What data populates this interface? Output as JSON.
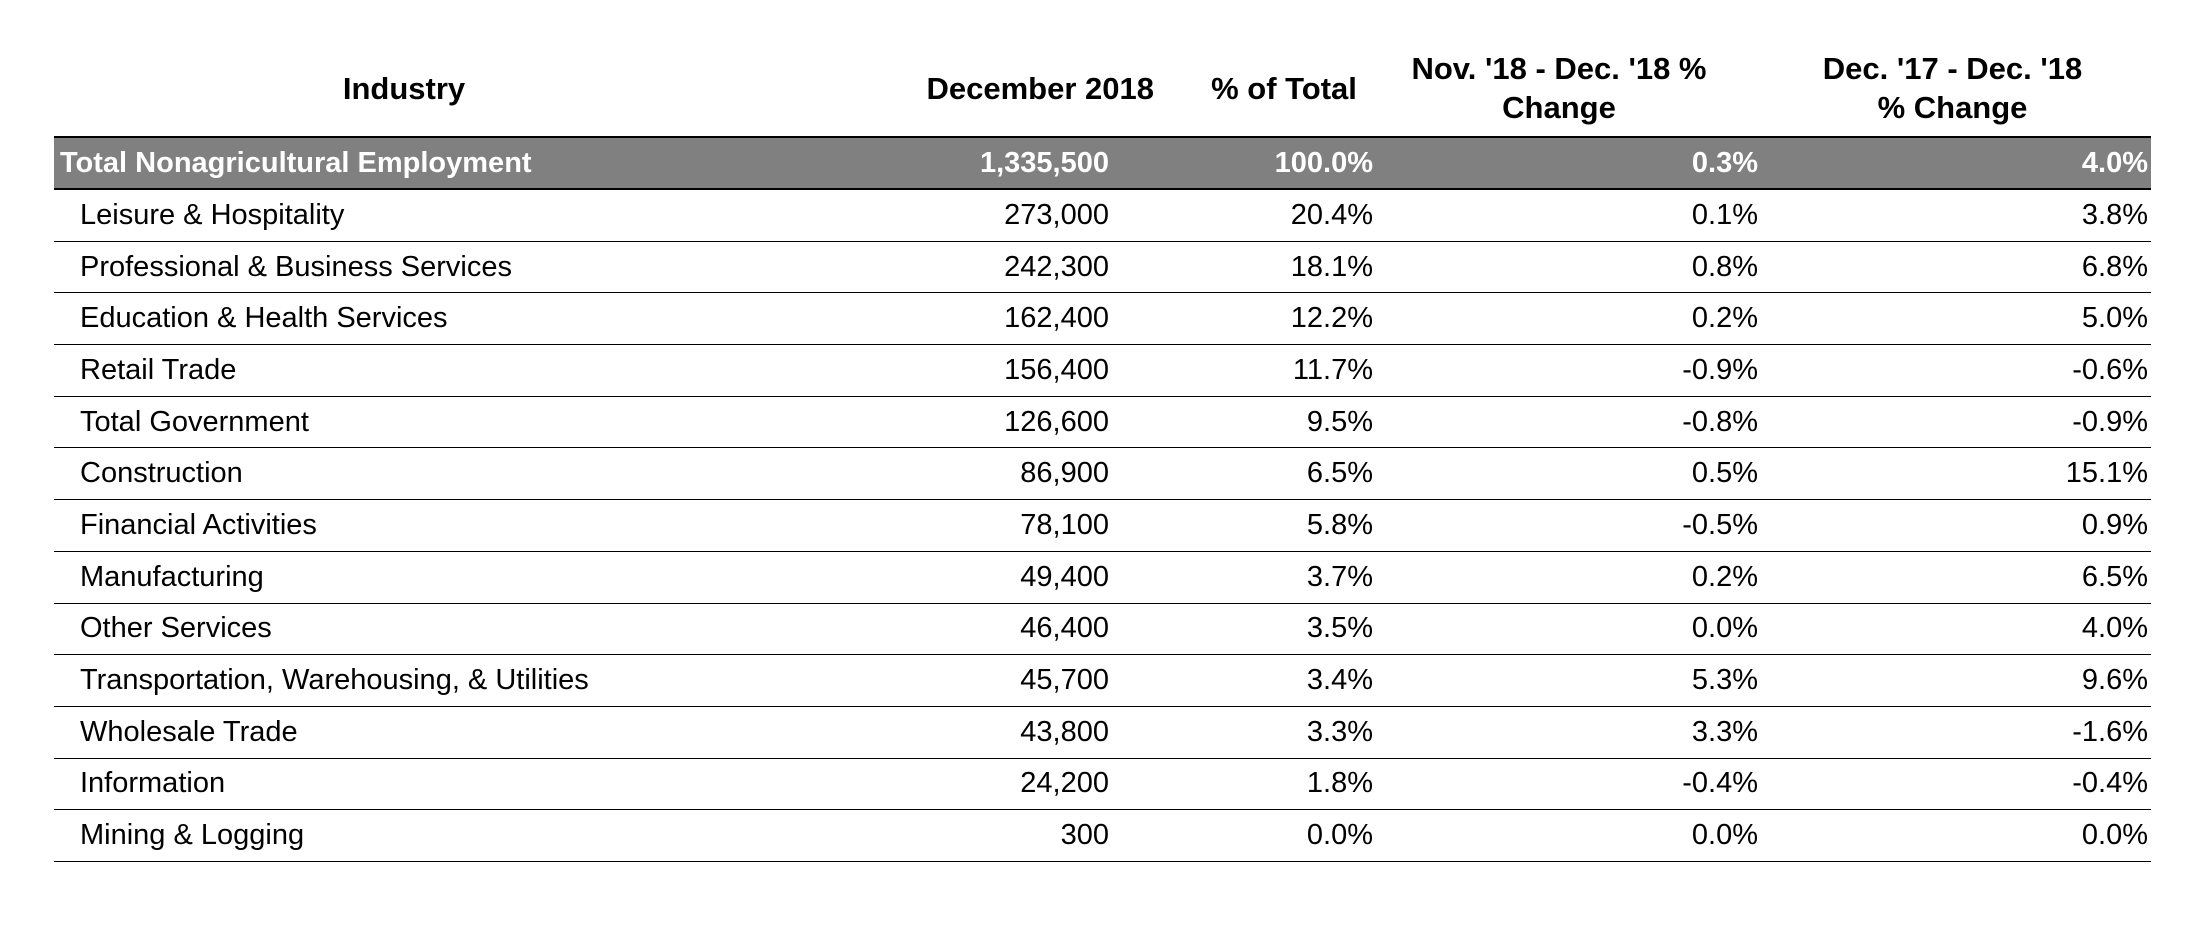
{
  "chart_data": {
    "type": "table",
    "columns": [
      "Industry",
      "December 2018",
      "% of Total",
      "Nov. '18 - Dec. '18     %\nChange",
      "Dec. '17 - Dec. '18\n% Change"
    ],
    "total_row": {
      "industry": "Total Nonagricultural Employment",
      "december_2018": "1,335,500",
      "pct_of_total": "100.0%",
      "monthly_change": "0.3%",
      "yearly_change": "4.0%"
    },
    "rows": [
      {
        "industry": "Leisure & Hospitality",
        "december_2018": "273,000",
        "pct_of_total": "20.4%",
        "monthly_change": "0.1%",
        "yearly_change": "3.8%"
      },
      {
        "industry": "Professional & Business Services",
        "december_2018": "242,300",
        "pct_of_total": "18.1%",
        "monthly_change": "0.8%",
        "yearly_change": "6.8%"
      },
      {
        "industry": "Education & Health Services",
        "december_2018": "162,400",
        "pct_of_total": "12.2%",
        "monthly_change": "0.2%",
        "yearly_change": "5.0%"
      },
      {
        "industry": "Retail Trade",
        "december_2018": "156,400",
        "pct_of_total": "11.7%",
        "monthly_change": "-0.9%",
        "yearly_change": "-0.6%"
      },
      {
        "industry": "Total Government",
        "december_2018": "126,600",
        "pct_of_total": "9.5%",
        "monthly_change": "-0.8%",
        "yearly_change": "-0.9%"
      },
      {
        "industry": "Construction",
        "december_2018": "86,900",
        "pct_of_total": "6.5%",
        "monthly_change": "0.5%",
        "yearly_change": "15.1%"
      },
      {
        "industry": "Financial Activities",
        "december_2018": "78,100",
        "pct_of_total": "5.8%",
        "monthly_change": "-0.5%",
        "yearly_change": "0.9%"
      },
      {
        "industry": "Manufacturing",
        "december_2018": "49,400",
        "pct_of_total": "3.7%",
        "monthly_change": "0.2%",
        "yearly_change": "6.5%"
      },
      {
        "industry": "Other Services",
        "december_2018": "46,400",
        "pct_of_total": "3.5%",
        "monthly_change": "0.0%",
        "yearly_change": "4.0%"
      },
      {
        "industry": "Transportation, Warehousing, & Utilities",
        "december_2018": "45,700",
        "pct_of_total": "3.4%",
        "monthly_change": "5.3%",
        "yearly_change": "9.6%"
      },
      {
        "industry": "Wholesale Trade",
        "december_2018": "43,800",
        "pct_of_total": "3.3%",
        "monthly_change": "3.3%",
        "yearly_change": "-1.6%"
      },
      {
        "industry": "Information",
        "december_2018": "24,200",
        "pct_of_total": "1.8%",
        "monthly_change": "-0.4%",
        "yearly_change": "-0.4%"
      },
      {
        "industry": "Mining & Logging",
        "december_2018": "300",
        "pct_of_total": "0.0%",
        "monthly_change": "0.0%",
        "yearly_change": "0.0%"
      }
    ],
    "colors": {
      "total_row_background": "#808080",
      "total_row_text": "#ffffff",
      "rule_lines": "#000000"
    }
  }
}
